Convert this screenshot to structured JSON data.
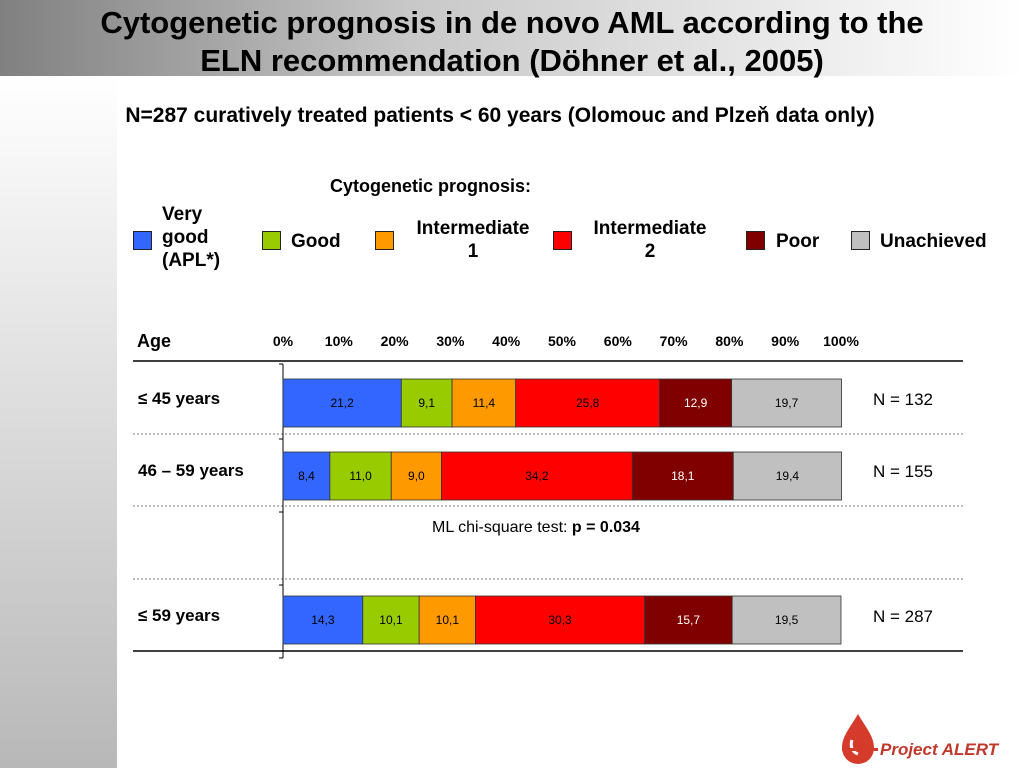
{
  "slide": {
    "title_line1": "Cytogenetic prognosis in de novo AML according to the",
    "title_line2": "ELN recommendation (Döhner et al., 2005)",
    "subtitle": "N=287 curatively treated patients < 60 years (Olomouc and Plzeň data only)",
    "logo_text": "Project ALERT"
  },
  "legend": {
    "title": "Cytogenetic prognosis:",
    "items": [
      {
        "lines": [
          "Very",
          "good",
          "(APL*)"
        ],
        "color": "#3366ff"
      },
      {
        "lines": [
          "Good"
        ],
        "color": "#99cc00"
      },
      {
        "lines": [
          "Intermediate",
          "1"
        ],
        "color": "#ff9900"
      },
      {
        "lines": [
          "Intermediate",
          "2"
        ],
        "color": "#ff0000"
      },
      {
        "lines": [
          "Poor"
        ],
        "color": "#800000"
      },
      {
        "lines": [
          "Unachieved"
        ],
        "color": "#c0c0c0"
      }
    ]
  },
  "chart_data": {
    "type": "bar",
    "orientation": "horizontal",
    "stacked": true,
    "row_header": "Age",
    "x_tick_labels": [
      "0%",
      "10%",
      "20%",
      "30%",
      "40%",
      "50%",
      "60%",
      "70%",
      "80%",
      "90%",
      "100%"
    ],
    "xlim": [
      0,
      100
    ],
    "categories": [
      "≤ 45 years",
      "46 – 59 years",
      "≤ 59 years"
    ],
    "n_labels": [
      "N = 132",
      "N = 155",
      "N = 287"
    ],
    "series": [
      {
        "name": "Very good (APL*)",
        "color": "#3366ff",
        "values": [
          21.2,
          8.4,
          14.3
        ],
        "labels": [
          "21,2",
          "8,4",
          "14,3"
        ]
      },
      {
        "name": "Good",
        "color": "#99cc00",
        "values": [
          9.1,
          11.0,
          10.1
        ],
        "labels": [
          "9,1",
          "11,0",
          "10,1"
        ]
      },
      {
        "name": "Intermediate 1",
        "color": "#ff9900",
        "values": [
          11.4,
          9.0,
          10.1
        ],
        "labels": [
          "11,4",
          "9,0",
          "10,1"
        ]
      },
      {
        "name": "Intermediate 2",
        "color": "#ff0000",
        "values": [
          25.8,
          34.2,
          30.3
        ],
        "labels": [
          "25,8",
          "34,2",
          "30,3"
        ]
      },
      {
        "name": "Poor",
        "color": "#800000",
        "values": [
          12.9,
          18.1,
          15.7
        ],
        "labels": [
          "12,9",
          "18,1",
          "15,7"
        ]
      },
      {
        "name": "Unachieved",
        "color": "#c0c0c0",
        "values": [
          19.7,
          19.4,
          19.5
        ],
        "labels": [
          "19,7",
          "19,4",
          "19,5"
        ]
      }
    ],
    "annotation": {
      "prefix": "ML chi-square test: ",
      "value": "p = 0.034"
    }
  }
}
